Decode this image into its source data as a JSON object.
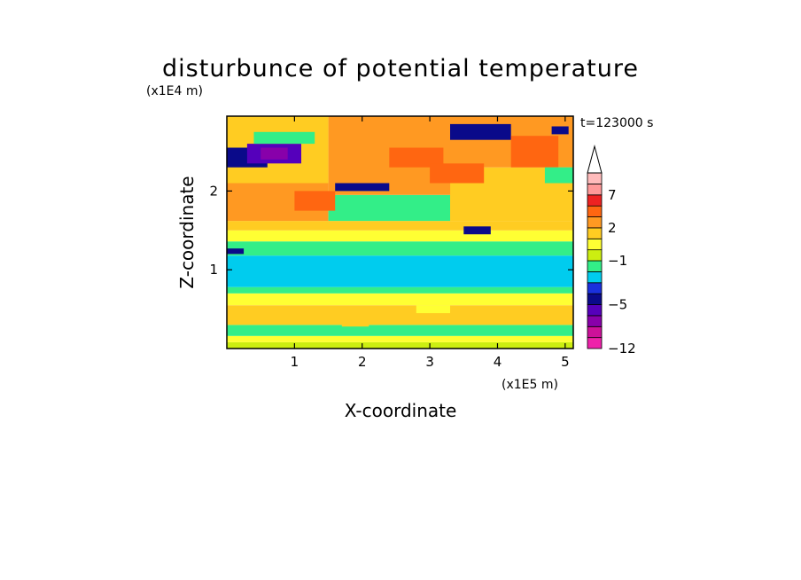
{
  "chart_data": {
    "type": "heatmap",
    "title": "disturbunce of potential temperature",
    "time_label": "t=123000 s",
    "xlabel": "X-coordinate",
    "ylabel": "Z-coordinate",
    "x_scale_label": "(x1E5 m)",
    "y_scale_label": "(x1E4 m)",
    "xlim": [
      0,
      5.12
    ],
    "ylim": [
      0,
      2.95
    ],
    "x_ticks": [
      {
        "value": 1,
        "label": "1"
      },
      {
        "value": 2,
        "label": "2"
      },
      {
        "value": 3,
        "label": "3"
      },
      {
        "value": 4,
        "label": "4"
      },
      {
        "value": 5,
        "label": "5"
      }
    ],
    "y_ticks": [
      {
        "value": 1,
        "label": "1"
      },
      {
        "value": 2,
        "label": "2"
      }
    ],
    "colorbar": {
      "levels": [
        -12,
        -10,
        -8,
        -6,
        -5,
        -4,
        -3,
        -2,
        -1,
        0,
        1,
        2,
        3,
        5,
        7,
        9,
        11
      ],
      "colors": [
        "#ee22aa",
        "#cc1199",
        "#8800aa",
        "#5500bb",
        "#0a0a8a",
        "#1a30dd",
        "#00ccee",
        "#33ee88",
        "#ccee11",
        "#ffff33",
        "#ffcc22",
        "#ff9922",
        "#ff6611",
        "#ee2222",
        "#ff9999",
        "#ffbbbb"
      ],
      "tick_labels": [
        {
          "value": -12,
          "label": "-12"
        },
        {
          "value": -5,
          "label": "-5"
        },
        {
          "value": -1,
          "label": "-1"
        },
        {
          "value": 2,
          "label": "2"
        },
        {
          "value": 7,
          "label": "7"
        }
      ],
      "extend": "max"
    },
    "regions": [
      {
        "x": [
          0,
          5.12
        ],
        "z": [
          0,
          0.08
        ],
        "value": -0.5
      },
      {
        "x": [
          0,
          5.12
        ],
        "z": [
          0.08,
          0.16
        ],
        "value": 0.5
      },
      {
        "x": [
          0,
          5.12
        ],
        "z": [
          0.16,
          0.3
        ],
        "value": -1.5
      },
      {
        "x": [
          0,
          5.12
        ],
        "z": [
          0.3,
          0.55
        ],
        "value": 1.5
      },
      {
        "x": [
          0,
          5.12
        ],
        "z": [
          0.55,
          0.7
        ],
        "value": 0.5
      },
      {
        "x": [
          0,
          5.12
        ],
        "z": [
          0.7,
          0.78
        ],
        "value": -1.5
      },
      {
        "x": [
          0,
          5.12
        ],
        "z": [
          0.78,
          1.18
        ],
        "value": -2.5
      },
      {
        "x": [
          0,
          5.12
        ],
        "z": [
          1.18,
          1.36
        ],
        "value": -1.5
      },
      {
        "x": [
          0,
          5.12
        ],
        "z": [
          1.36,
          1.5
        ],
        "value": 0.5
      },
      {
        "x": [
          0,
          5.12
        ],
        "z": [
          1.5,
          1.62
        ],
        "value": 1.5
      },
      {
        "x": [
          0,
          1.5
        ],
        "z": [
          1.62,
          2.1
        ],
        "value": 2.5
      },
      {
        "x": [
          1.5,
          3.3
        ],
        "z": [
          1.62,
          1.95
        ],
        "value": -1.5
      },
      {
        "x": [
          3.3,
          5.12
        ],
        "z": [
          1.62,
          2.3
        ],
        "value": 1.5
      },
      {
        "x": [
          0,
          1.5
        ],
        "z": [
          2.1,
          2.95
        ],
        "value": 1.5
      },
      {
        "x": [
          1.5,
          3.3
        ],
        "z": [
          1.95,
          2.95
        ],
        "value": 2.5
      },
      {
        "x": [
          3.3,
          5.12
        ],
        "z": [
          2.3,
          2.95
        ],
        "value": 2.5
      },
      {
        "x": [
          0,
          0.6
        ],
        "z": [
          2.3,
          2.55
        ],
        "value": -4.5
      },
      {
        "x": [
          0.3,
          1.1
        ],
        "z": [
          2.35,
          2.6
        ],
        "value": -5.5
      },
      {
        "x": [
          0.5,
          0.9
        ],
        "z": [
          2.4,
          2.55
        ],
        "value": -7
      },
      {
        "x": [
          0.4,
          1.3
        ],
        "z": [
          2.6,
          2.75
        ],
        "value": -1.5
      },
      {
        "x": [
          1.6,
          2.4
        ],
        "z": [
          2.0,
          2.1
        ],
        "value": -4.5
      },
      {
        "x": [
          3.3,
          4.2
        ],
        "z": [
          2.65,
          2.85
        ],
        "value": -4.5
      },
      {
        "x": [
          2.4,
          3.2
        ],
        "z": [
          2.3,
          2.55
        ],
        "value": 3.5
      },
      {
        "x": [
          3.0,
          3.8
        ],
        "z": [
          2.1,
          2.35
        ],
        "value": 3.5
      },
      {
        "x": [
          1.0,
          1.6
        ],
        "z": [
          1.75,
          2.0
        ],
        "value": 3.5
      },
      {
        "x": [
          4.2,
          4.9
        ],
        "z": [
          2.3,
          2.7
        ],
        "value": 3.5
      },
      {
        "x": [
          4.7,
          5.12
        ],
        "z": [
          2.1,
          2.3
        ],
        "value": -1.5
      },
      {
        "x": [
          4.8,
          5.05
        ],
        "z": [
          2.72,
          2.82
        ],
        "value": -4.5
      },
      {
        "x": [
          0.0,
          0.25
        ],
        "z": [
          1.2,
          1.27
        ],
        "value": -4.5
      },
      {
        "x": [
          3.5,
          3.9
        ],
        "z": [
          1.45,
          1.55
        ],
        "value": -4.5
      },
      {
        "x": [
          1.7,
          2.1
        ],
        "z": [
          0.28,
          0.38
        ],
        "value": 1.5
      },
      {
        "x": [
          2.8,
          3.3
        ],
        "z": [
          0.45,
          0.55
        ],
        "value": 0.5
      }
    ]
  }
}
